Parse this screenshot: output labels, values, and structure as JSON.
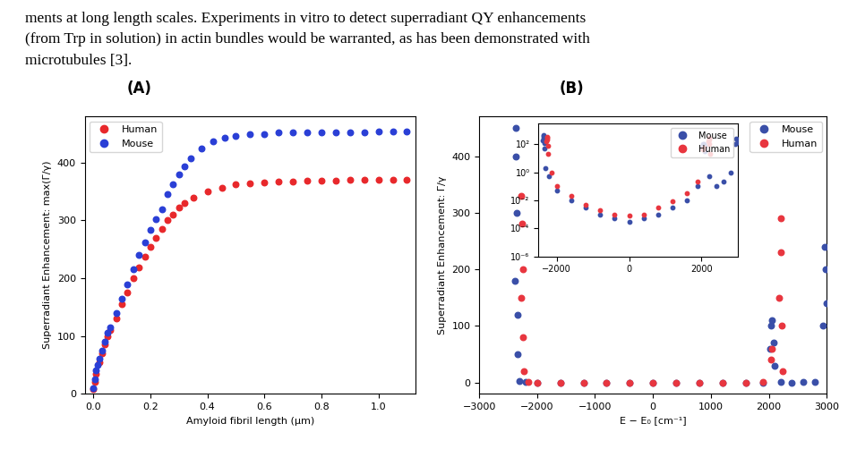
{
  "text": [
    "ments at long length scales. Experiments in vitro to detect superradiant QY enhancements",
    "(from Trp in solution) in actin bundles would be warranted, as has been demonstrated with",
    "microtubules [3]."
  ],
  "chart_data": [
    {
      "type": "scatter",
      "label": "(A)",
      "x_label": "Amyloid fibril length (μm)",
      "y_label": "Superradiant Enhancement: max(Γ/γ)",
      "legend": "upper left",
      "xlim": [
        -0.03,
        1.13
      ],
      "xticks": [
        {
          "value": 0.0,
          "label": "0.0"
        },
        {
          "value": 0.2,
          "label": "0.2"
        },
        {
          "value": 0.4,
          "label": "0.4"
        },
        {
          "value": 0.6,
          "label": "0.6"
        },
        {
          "value": 0.8,
          "label": "0.8"
        },
        {
          "value": 1.0,
          "label": "1.0"
        }
      ],
      "ylim": [
        0,
        480
      ],
      "yticks": [
        0,
        100,
        200,
        300,
        400
      ],
      "series": [
        {
          "name": "Human",
          "color": "#e8282b",
          "marker": "o",
          "x": [
            0.0,
            0.005,
            0.01,
            0.02,
            0.03,
            0.04,
            0.05,
            0.06,
            0.08,
            0.1,
            0.12,
            0.14,
            0.16,
            0.18,
            0.2,
            0.22,
            0.24,
            0.26,
            0.28,
            0.3,
            0.32,
            0.35,
            0.4,
            0.45,
            0.5,
            0.55,
            0.6,
            0.65,
            0.7,
            0.75,
            0.8,
            0.85,
            0.9,
            0.95,
            1.0,
            1.05,
            1.1
          ],
          "values": [
            8,
            20,
            35,
            55,
            70,
            85,
            100,
            110,
            130,
            155,
            175,
            200,
            218,
            237,
            255,
            270,
            285,
            300,
            310,
            322,
            330,
            340,
            350,
            357,
            362,
            365,
            366,
            367,
            368,
            369,
            369,
            369,
            370,
            370,
            370,
            370,
            370
          ]
        },
        {
          "name": "Mouse",
          "color": "#2a3fd6",
          "marker": "o",
          "x": [
            0.0,
            0.005,
            0.01,
            0.015,
            0.02,
            0.03,
            0.04,
            0.05,
            0.06,
            0.08,
            0.1,
            0.12,
            0.14,
            0.16,
            0.18,
            0.2,
            0.22,
            0.24,
            0.26,
            0.28,
            0.3,
            0.32,
            0.34,
            0.38,
            0.42,
            0.46,
            0.5,
            0.55,
            0.6,
            0.65,
            0.7,
            0.75,
            0.8,
            0.85,
            0.9,
            0.95,
            1.0,
            1.05,
            1.1
          ],
          "values": [
            10,
            25,
            40,
            50,
            60,
            75,
            90,
            105,
            115,
            140,
            165,
            190,
            215,
            240,
            262,
            283,
            302,
            320,
            345,
            362,
            380,
            393,
            407,
            425,
            437,
            443,
            447,
            449,
            450,
            452,
            452,
            453,
            453,
            453,
            453,
            453,
            454,
            454,
            454
          ]
        }
      ]
    },
    {
      "type": "scatter",
      "label": "(B)",
      "x_label": "E − E₀ [cm⁻¹]",
      "y_label": "Superradiant Enhancement: Γ/γ",
      "legend": "upper right",
      "xlim": [
        -3000,
        3000
      ],
      "xticks": [
        {
          "value": -3000,
          "label": "−3000"
        },
        {
          "value": -2000,
          "label": "−2000"
        },
        {
          "value": -1000,
          "label": "−1000"
        },
        0,
        1000,
        2000,
        3000
      ],
      "ylim": [
        -20,
        470
      ],
      "yticks": [
        0,
        100,
        200,
        300,
        400
      ],
      "series": [
        {
          "name": "Mouse",
          "color": "#3a4fa8",
          "marker": "o",
          "x": [
            -2380,
            -2370,
            -2360,
            -2350,
            -2340,
            -2330,
            -2300,
            -2200,
            -2000,
            -1600,
            -1200,
            -800,
            -400,
            0,
            400,
            800,
            1200,
            1600,
            1900,
            2020,
            2040,
            2060,
            2080,
            2100,
            2200,
            2400,
            2600,
            2800,
            2940,
            2960,
            2980,
            3000
          ],
          "values": [
            180,
            450,
            400,
            300,
            120,
            50,
            2,
            0.5,
            0.05,
            0.01,
            0.003,
            0.001,
            0.0005,
            0.0003,
            0.0005,
            0.001,
            0.003,
            0.01,
            0.1,
            60,
            100,
            110,
            70,
            30,
            0.5,
            0.1,
            0.2,
            1,
            100,
            240,
            200,
            140
          ]
        },
        {
          "name": "Human",
          "color": "#e8363f",
          "marker": "o",
          "x": [
            -2280,
            -2270,
            -2260,
            -2250,
            -2240,
            -2230,
            -2150,
            -2000,
            -1600,
            -1200,
            -800,
            -400,
            0,
            400,
            800,
            1200,
            1600,
            1900,
            2040,
            2060,
            2180,
            2200,
            2210,
            2220,
            2240
          ],
          "values": [
            150,
            330,
            280,
            200,
            80,
            20,
            1,
            0.1,
            0.02,
            0.005,
            0.002,
            0.001,
            0.0008,
            0.001,
            0.003,
            0.008,
            0.03,
            0.2,
            40,
            60,
            150,
            290,
            230,
            100,
            20
          ]
        }
      ]
    },
    {
      "type": "scatter",
      "log": "y",
      "xlim": [
        -2500,
        3000
      ],
      "xticks": [
        {
          "value": -2000,
          "label": "−2000"
        },
        0,
        2000
      ],
      "ylim": [
        1e-06,
        3000
      ],
      "yticks": [
        {
          "value": 1e-06,
          "label": "10⁻⁶"
        },
        {
          "value": 0.0001,
          "label": "10⁻⁴"
        },
        {
          "value": 0.01,
          "label": "10⁻²"
        },
        {
          "value": 1,
          "label": "10⁰"
        },
        {
          "value": 100,
          "label": "10²"
        }
      ]
    }
  ]
}
